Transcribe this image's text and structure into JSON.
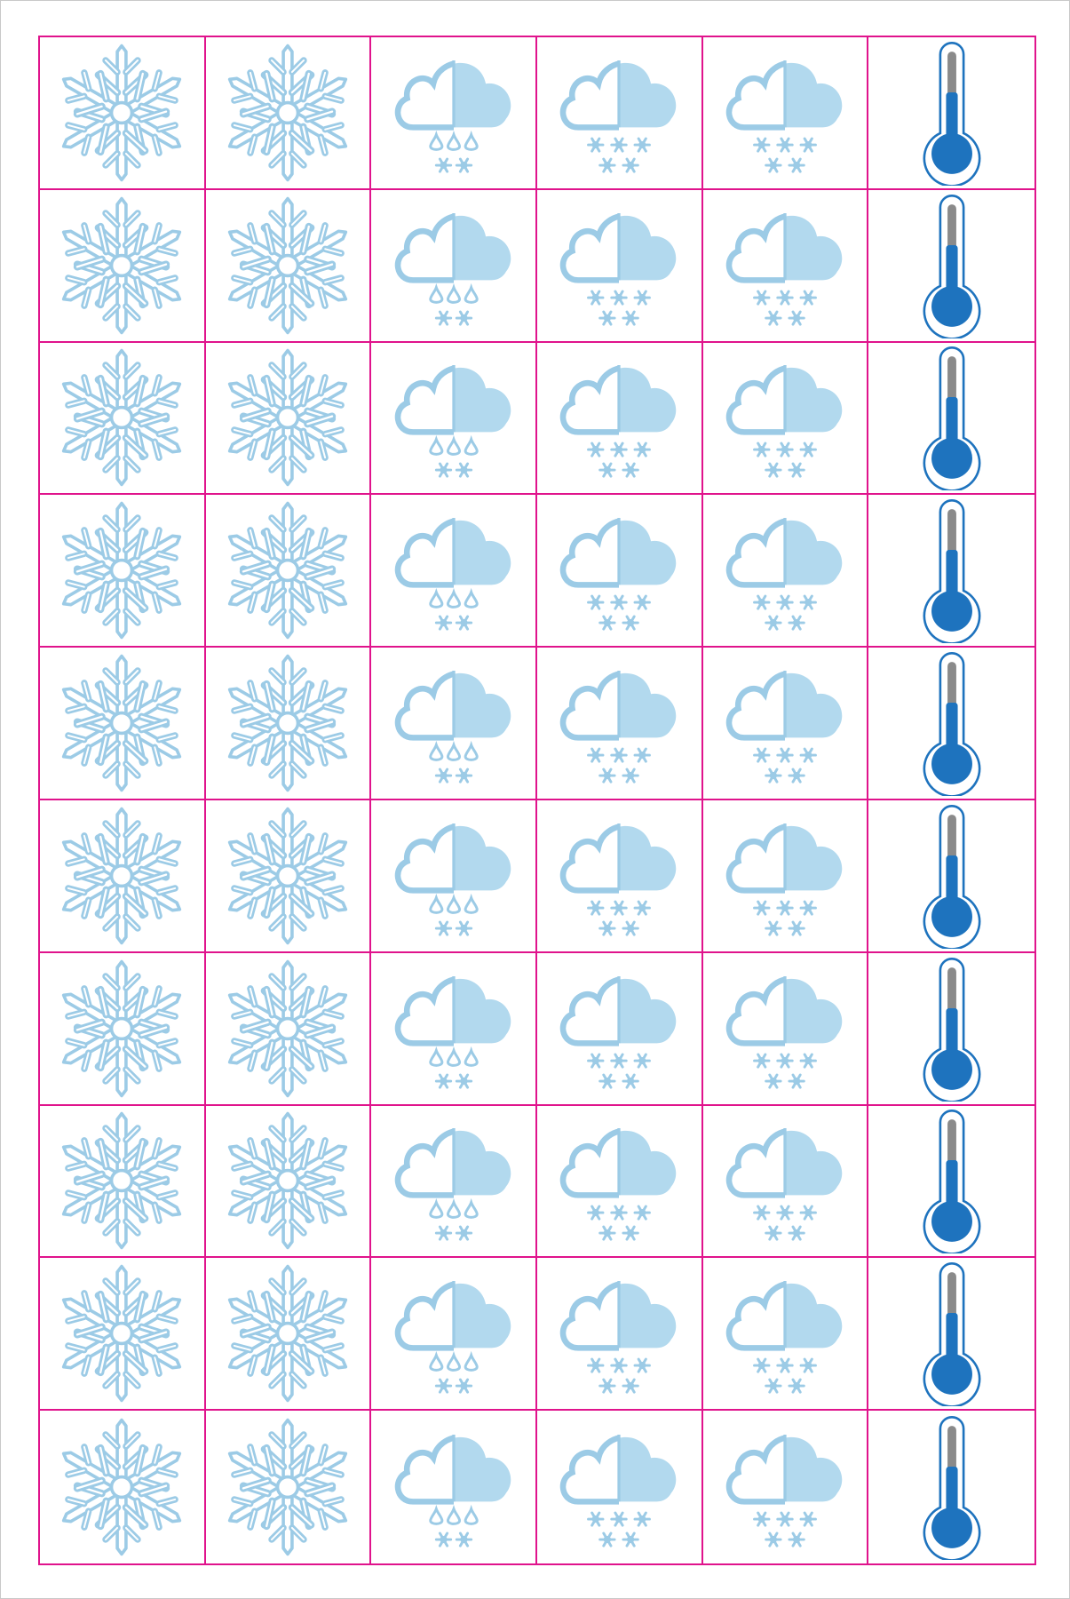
{
  "grid": {
    "rows": 10,
    "columns": [
      "snowflake-icon",
      "snowflake-icon",
      "cloud-sleet-icon",
      "cloud-heavy-snow-icon",
      "cloud-heavy-snow-icon",
      "thermometer-cold-icon"
    ]
  },
  "colors": {
    "grid_line": "#e0138c",
    "ice_light": "#b2d9ee",
    "ice_outline": "#9ccbe6",
    "thermo_fill": "#1e73be",
    "thermo_tube": "#8a8a8a",
    "thermo_outline": "#1e73be"
  }
}
